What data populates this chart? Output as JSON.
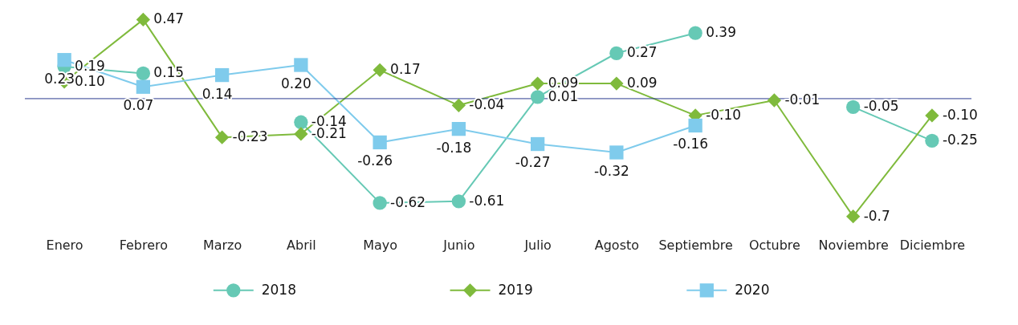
{
  "chart_data": {
    "type": "line",
    "categories": [
      "Enero",
      "Febrero",
      "Marzo",
      "Abril",
      "Mayo",
      "Junio",
      "Julio",
      "Agosto",
      "Septiembre",
      "Octubre",
      "Noviembre",
      "Diciembre"
    ],
    "series": [
      {
        "name": "2018",
        "color": "#66c9b5",
        "marker": "circle",
        "values": [
          0.19,
          0.15,
          null,
          -0.14,
          -0.62,
          -0.61,
          0.01,
          0.27,
          0.39,
          null,
          -0.05,
          -0.25
        ],
        "value_labels": [
          "0.19",
          "0.15",
          null,
          "-0.14",
          "-0.62",
          "-0.61",
          "0.01",
          "0.27",
          "0.39",
          null,
          "-0.05",
          "-0.25"
        ]
      },
      {
        "name": "2019",
        "color": "#7fba3c",
        "marker": "diamond",
        "values": [
          0.1,
          0.47,
          -0.23,
          -0.21,
          0.17,
          -0.04,
          0.09,
          0.09,
          -0.1,
          -0.01,
          -0.7,
          -0.1
        ],
        "value_labels": [
          "0.10",
          "0.47",
          "-0.23",
          "-0.21",
          "0.17",
          "-0.04",
          "0.09",
          "0.09",
          "-0.10",
          "-0.01",
          "-0.7",
          "-0.10"
        ]
      },
      {
        "name": "2020",
        "color": "#7fcbec",
        "marker": "square",
        "values": [
          0.23,
          0.07,
          0.14,
          0.2,
          -0.26,
          -0.18,
          -0.27,
          -0.32,
          -0.16,
          null,
          null,
          null
        ],
        "value_labels": [
          "0.23",
          "0.07",
          "0.14",
          "0.20",
          "-0.26",
          "-0.18",
          "-0.27",
          "-0.32",
          "-0.16",
          null,
          null,
          null
        ]
      }
    ],
    "ref_lines": [
      {
        "axis": "y",
        "value": 0,
        "color": "#2b3a8f"
      }
    ],
    "legend": "bottom",
    "grid": false
  }
}
